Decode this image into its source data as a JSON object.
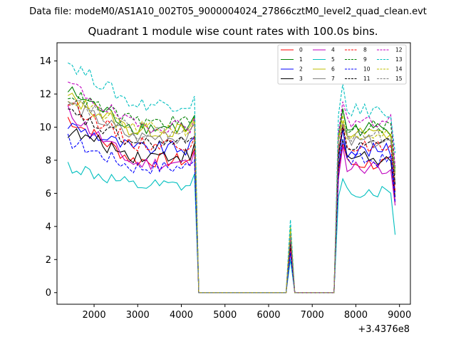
{
  "suptitle": "Data file: modeM0/AS1A10_002T05_9000004024_27866cztM0_level2_quad_clean.evt",
  "chart_data": {
    "type": "line",
    "title": "Quadrant 1 module wise count rates with 100.0s bins.",
    "xlabel": "",
    "ylabel": "",
    "x_offset_label": "+3.4376e8",
    "xlim": [
      1150,
      9250
    ],
    "ylim": [
      -0.7,
      15.1
    ],
    "xticks": [
      2000,
      3000,
      4000,
      5000,
      6000,
      7000,
      8000,
      9000
    ],
    "yticks": [
      0,
      2,
      4,
      6,
      8,
      10,
      12,
      14
    ],
    "legend_position": "upper right",
    "legend_columns": 4,
    "x": [
      1400,
      1500,
      1600,
      1700,
      1800,
      1900,
      2000,
      2100,
      2200,
      2300,
      2400,
      2500,
      2600,
      2700,
      2800,
      2900,
      3000,
      3100,
      3200,
      3300,
      3400,
      3500,
      3600,
      3700,
      3800,
      3900,
      4000,
      4100,
      4200,
      4300,
      4400,
      4500,
      4600,
      4700,
      4800,
      4900,
      5000,
      5100,
      5200,
      5300,
      5400,
      5500,
      5600,
      5700,
      5800,
      5900,
      6000,
      6100,
      6200,
      6300,
      6400,
      6500,
      6600,
      6700,
      6800,
      6900,
      7000,
      7100,
      7200,
      7300,
      7400,
      7500,
      7600,
      7700,
      7800,
      7900,
      8000,
      8100,
      8200,
      8300,
      8400,
      8500,
      8600,
      8700,
      8800,
      8900
    ],
    "series": [
      {
        "name": "0",
        "color": "#ff0000",
        "dash": "solid",
        "base": 8.0,
        "start": 11.0,
        "post": 7.8,
        "peak": 9.0,
        "spike": 2.5
      },
      {
        "name": "1",
        "color": "#008000",
        "dash": "solid",
        "base": 10.0,
        "start": 12.6,
        "post": 9.9,
        "peak": 11.0,
        "spike": 3.0
      },
      {
        "name": "2",
        "color": "#0000ff",
        "dash": "solid",
        "base": 8.7,
        "start": 10.4,
        "post": 8.6,
        "peak": 10.0,
        "spike": 2.8
      },
      {
        "name": "3",
        "color": "#000000",
        "dash": "solid",
        "base": 8.3,
        "start": 10.0,
        "post": 8.2,
        "peak": 9.3,
        "spike": 2.6
      },
      {
        "name": "4",
        "color": "#bf00bf",
        "dash": "solid",
        "base": 7.8,
        "start": 11.5,
        "post": 7.6,
        "peak": 8.8,
        "spike": 2.5
      },
      {
        "name": "5",
        "color": "#00bfbf",
        "dash": "solid",
        "base": 6.4,
        "start": 7.9,
        "post": 6.1,
        "peak": 7.0,
        "spike": 2.0
      },
      {
        "name": "6",
        "color": "#bfbf00",
        "dash": "solid",
        "base": 9.8,
        "start": 12.2,
        "post": 9.6,
        "peak": 10.4,
        "spike": 4.0
      },
      {
        "name": "7",
        "color": "#808080",
        "dash": "solid",
        "base": 9.4,
        "start": 11.8,
        "post": 9.1,
        "peak": 10.0,
        "spike": 3.6
      },
      {
        "name": "8",
        "color": "#ff0000",
        "dash": "dashed",
        "base": 9.0,
        "start": 12.0,
        "post": 8.8,
        "peak": 10.0,
        "spike": 2.9
      },
      {
        "name": "9",
        "color": "#008000",
        "dash": "dashed",
        "base": 10.3,
        "start": 12.4,
        "post": 10.0,
        "peak": 11.2,
        "spike": 3.3
      },
      {
        "name": "10",
        "color": "#0000ff",
        "dash": "dashed",
        "base": 7.6,
        "start": 9.5,
        "post": 8.0,
        "peak": 9.2,
        "spike": 2.4
      },
      {
        "name": "11",
        "color": "#000000",
        "dash": "dashed",
        "base": 9.0,
        "start": 11.2,
        "post": 8.9,
        "peak": 9.9,
        "spike": 3.0
      },
      {
        "name": "12",
        "color": "#bf00bf",
        "dash": "dashed",
        "base": 10.1,
        "start": 13.1,
        "post": 10.3,
        "peak": 11.6,
        "spike": 3.4
      },
      {
        "name": "13",
        "color": "#00bfbf",
        "dash": "dashed",
        "base": 11.4,
        "start": 14.4,
        "post": 11.0,
        "peak": 12.6,
        "spike": 4.4
      },
      {
        "name": "14",
        "color": "#bfbf00",
        "dash": "dashed",
        "base": 9.9,
        "start": 12.1,
        "post": 9.7,
        "peak": 10.6,
        "spike": 3.7
      },
      {
        "name": "15",
        "color": "#808080",
        "dash": "dashed",
        "base": 9.7,
        "start": 12.3,
        "post": 9.5,
        "peak": 10.3,
        "spike": 3.5
      }
    ]
  }
}
